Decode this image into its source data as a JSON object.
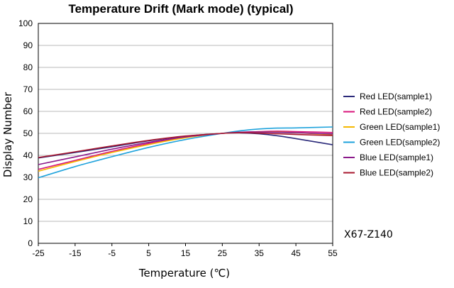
{
  "chart_data": {
    "type": "line",
    "title": "Temperature Drift (Mark mode) (typical)",
    "xlabel": "Temperature (℃)",
    "ylabel": "Display Number",
    "xlim": [
      -25,
      55
    ],
    "ylim": [
      0,
      100
    ],
    "x_ticks": [
      "-25",
      "-15",
      "-5",
      "5",
      "15",
      "25",
      "35",
      "45",
      "55"
    ],
    "y_ticks": [
      "0",
      "10",
      "20",
      "30",
      "40",
      "50",
      "60",
      "70",
      "80",
      "90",
      "100"
    ],
    "grid": "y-major",
    "legend_position": "right",
    "x": [
      -25,
      -15,
      -5,
      5,
      15,
      25,
      30,
      35,
      40,
      45,
      55
    ],
    "series": [
      {
        "name": "Red LED(sample1)",
        "color": "#2b2a7a",
        "values": [
          38.8,
          41.3,
          43.9,
          46.6,
          48.7,
          50.0,
          50.2,
          49.8,
          48.9,
          47.6,
          44.8
        ]
      },
      {
        "name": "Red LED(sample2)",
        "color": "#d9157b",
        "values": [
          33.6,
          37.7,
          41.8,
          45.4,
          48.2,
          50.0,
          50.5,
          50.8,
          51.0,
          50.8,
          50.4
        ]
      },
      {
        "name": "Green LED(sample1)",
        "color": "#f5b800",
        "values": [
          32.8,
          37.2,
          41.3,
          44.9,
          48.0,
          50.0,
          50.4,
          50.6,
          50.6,
          50.3,
          49.4
        ]
      },
      {
        "name": "Green LED(sample2)",
        "color": "#1fa3dc",
        "values": [
          29.8,
          34.9,
          39.4,
          43.6,
          47.2,
          50.0,
          51.2,
          52.0,
          52.4,
          52.5,
          52.9
        ]
      },
      {
        "name": "Blue LED(sample1)",
        "color": "#8b1a8b",
        "values": [
          35.8,
          39.3,
          42.8,
          45.9,
          48.4,
          50.0,
          50.5,
          50.6,
          50.5,
          50.3,
          49.7
        ]
      },
      {
        "name": "Blue LED(sample2)",
        "color": "#a8182f",
        "values": [
          39.0,
          41.6,
          44.3,
          46.8,
          48.8,
          50.0,
          50.3,
          50.1,
          49.8,
          49.5,
          49.0
        ]
      }
    ]
  },
  "annotation": "X67-Z140"
}
